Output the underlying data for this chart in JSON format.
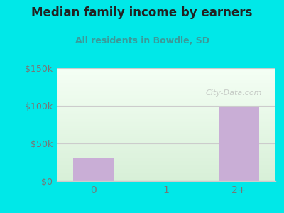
{
  "title": "Median family income by earners",
  "subtitle": "All residents in Bowdle, SD",
  "categories": [
    "0",
    "1",
    "2+"
  ],
  "values": [
    30000,
    0,
    98000
  ],
  "bar_color": "#c9aed6",
  "outer_bg": "#00e8e8",
  "plot_bg_top": "#f5fff5",
  "plot_bg_bottom": "#d8f0d8",
  "title_color": "#222222",
  "subtitle_color": "#3a9a9a",
  "tick_color": "#777777",
  "grid_color": "#cccccc",
  "ylim": [
    0,
    150000
  ],
  "yticks": [
    0,
    50000,
    100000,
    150000
  ],
  "ytick_labels": [
    "$0",
    "$50k",
    "$100k",
    "$150k"
  ],
  "watermark": "City-Data.com"
}
